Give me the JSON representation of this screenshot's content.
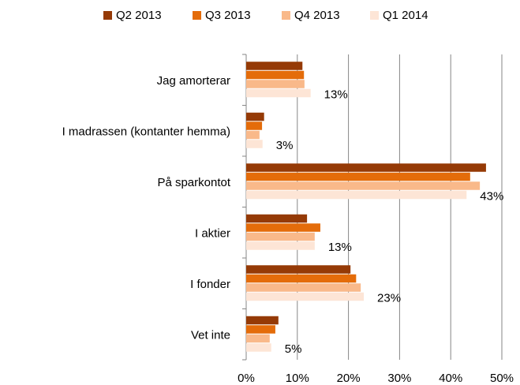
{
  "chart_data": {
    "type": "hbar",
    "categories": [
      "Jag amorterar",
      "I madrassen (kontanter hemma)",
      "På sparkontot",
      "I aktier",
      "I fonder",
      "Vet inte"
    ],
    "series": [
      {
        "name": "Q2 2013",
        "color": "#953a06",
        "values": [
          11,
          3.5,
          46.9,
          11.9,
          20.4,
          6.3
        ]
      },
      {
        "name": "Q3 2013",
        "color": "#e46c0a",
        "values": [
          11.3,
          3.1,
          43.8,
          14.5,
          21.5,
          5.7
        ]
      },
      {
        "name": "Q4 2013",
        "color": "#f9b98a",
        "values": [
          11.4,
          2.6,
          45.7,
          13.4,
          22.4,
          4.6
        ]
      },
      {
        "name": "Q1 2014",
        "color": "#fde5d6",
        "values": [
          12.6,
          3.2,
          43.1,
          13.4,
          23,
          4.9
        ],
        "value_labels": [
          "13%",
          "3%",
          "43%",
          "13%",
          "23%",
          "5%"
        ]
      }
    ],
    "xlim": [
      0,
      50
    ],
    "xticks": [
      {
        "value": 0,
        "label": "0%"
      },
      {
        "value": 10,
        "label": "10%"
      },
      {
        "value": 20,
        "label": "20%"
      },
      {
        "value": 30,
        "label": "30%"
      },
      {
        "value": 40,
        "label": "40%"
      },
      {
        "value": 50,
        "label": "50%"
      }
    ],
    "grid": true,
    "legend": "top"
  }
}
